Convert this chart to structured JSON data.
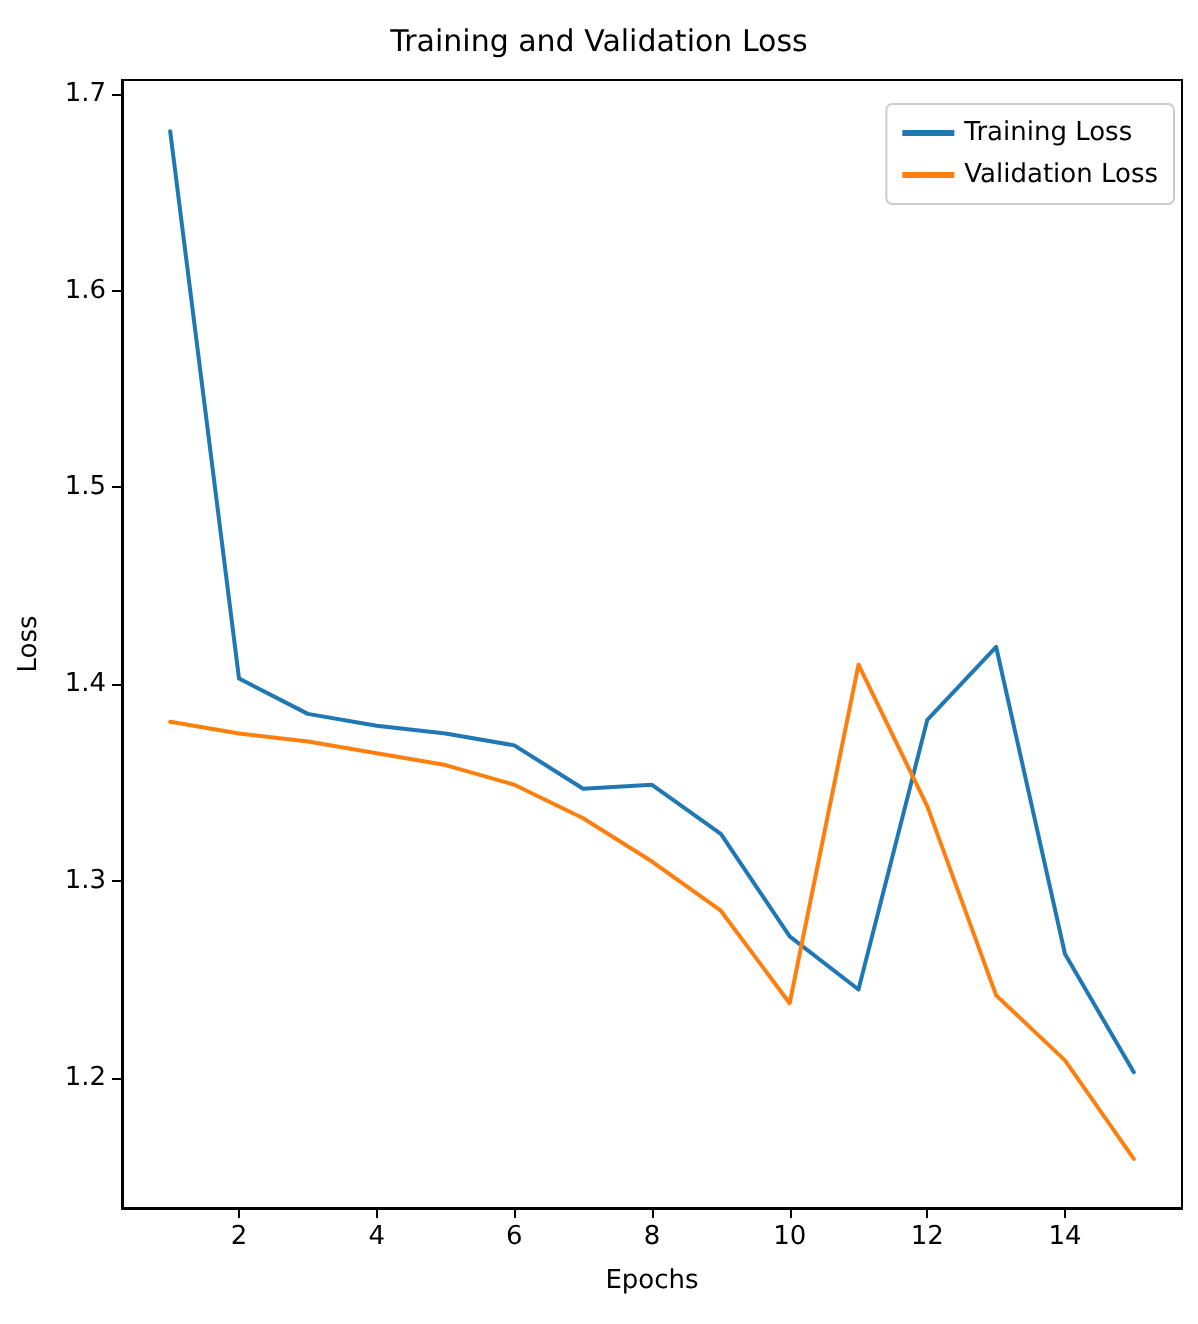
{
  "chart_data": {
    "type": "line",
    "title": "Training and Validation Loss",
    "xlabel": "Epochs",
    "ylabel": "Loss",
    "x": [
      1,
      2,
      3,
      4,
      5,
      6,
      7,
      8,
      9,
      10,
      11,
      12,
      13,
      14,
      15
    ],
    "series": [
      {
        "name": "Training Loss",
        "color": "#1f77b4",
        "values": [
          1.681,
          1.403,
          1.385,
          1.379,
          1.375,
          1.369,
          1.347,
          1.349,
          1.324,
          1.272,
          1.245,
          1.382,
          1.419,
          1.263,
          1.203
        ]
      },
      {
        "name": "Validation Loss",
        "color": "#ff7f0e",
        "values": [
          1.381,
          1.375,
          1.371,
          1.365,
          1.359,
          1.349,
          1.332,
          1.31,
          1.285,
          1.238,
          1.41,
          1.338,
          1.242,
          1.209,
          1.159
        ]
      }
    ],
    "xlim": [
      0.3,
      15.7
    ],
    "xticks": [
      2,
      4,
      6,
      8,
      10,
      12,
      14
    ],
    "ylim": [
      1.134,
      1.707
    ],
    "yticks": [
      1.2,
      1.3,
      1.4,
      1.5,
      1.6,
      1.7
    ],
    "grid": false,
    "legend": "top right",
    "marker": "none",
    "line_style": "solid"
  }
}
